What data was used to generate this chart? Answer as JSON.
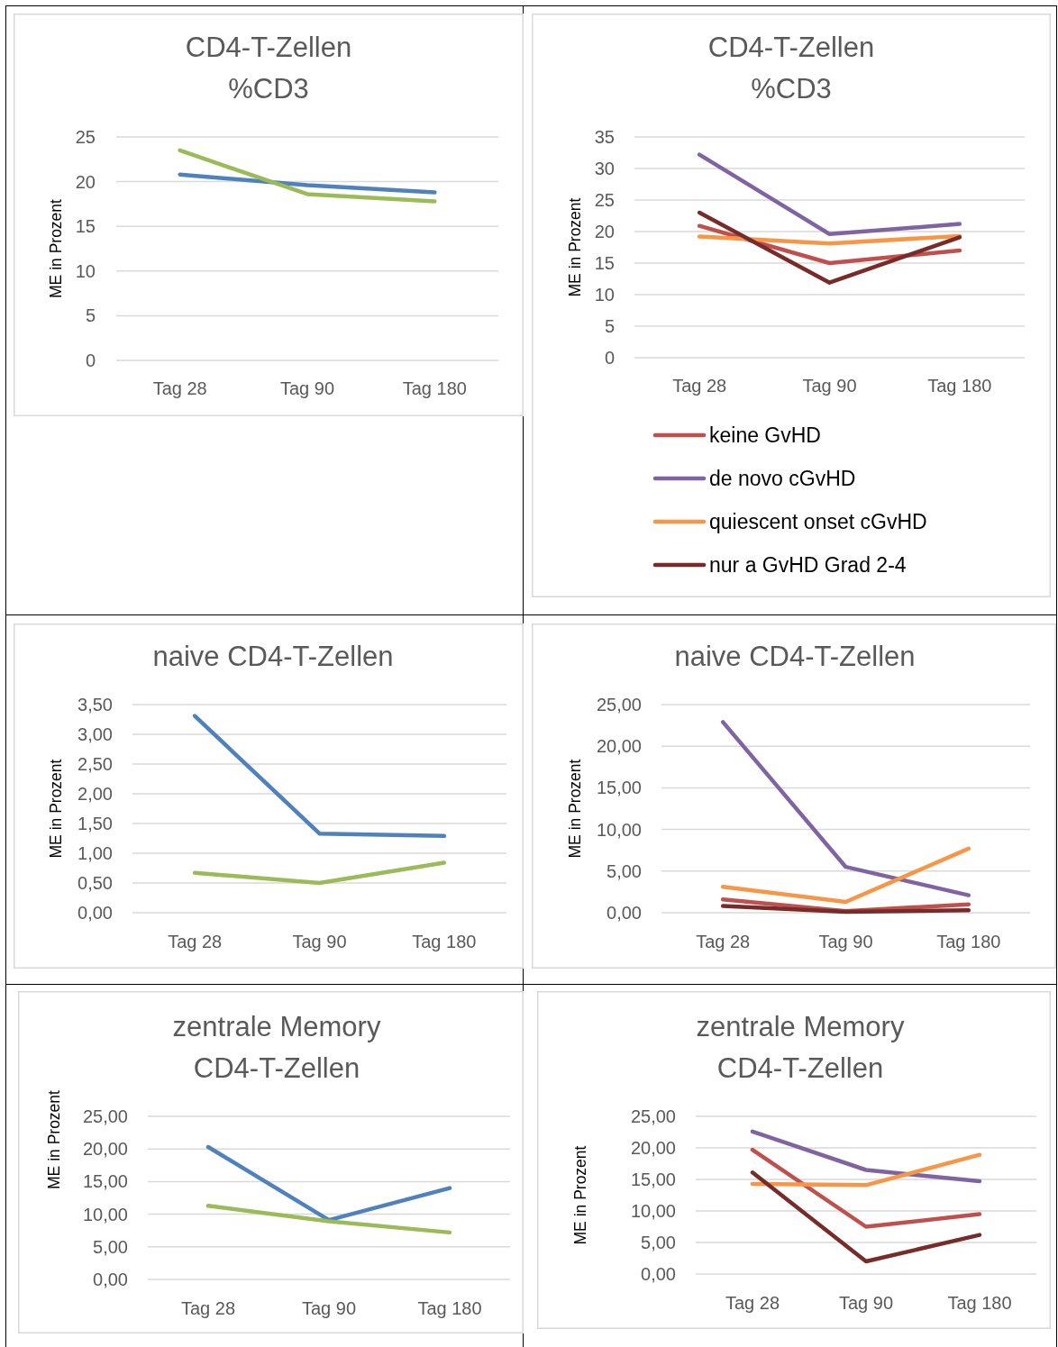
{
  "chart_data": [
    {
      "type": "line",
      "title": "CD4-T-Zellen %CD3",
      "ylabel": "ME in Prozent",
      "categories": [
        "Tag 28",
        "Tag 90",
        "Tag 180"
      ],
      "series": [
        {
          "color": "#4f81bd",
          "values": [
            20.8,
            19.6,
            18.8
          ]
        },
        {
          "color": "#9bbb59",
          "values": [
            23.5,
            18.6,
            17.8
          ]
        }
      ],
      "ylim": [
        0,
        25
      ],
      "yticks": [
        0,
        5,
        10,
        15,
        20,
        25
      ],
      "grid": "y"
    },
    {
      "type": "line",
      "title": "CD4-T-Zellen %CD3",
      "ylabel": "ME in Prozent",
      "categories": [
        "Tag 28",
        "Tag 90",
        "Tag 180"
      ],
      "series": [
        {
          "name": "keine GvHD",
          "color": "#c0504d",
          "values": [
            20.9,
            15.0,
            17.0
          ]
        },
        {
          "name": "de novo cGvHD",
          "color": "#8064a2",
          "values": [
            32.2,
            19.6,
            21.2
          ]
        },
        {
          "name": "quiescent onset cGvHD",
          "color": "#f79646",
          "values": [
            19.2,
            18.1,
            19.3
          ]
        },
        {
          "name": "nur a GvHD Grad 2-4",
          "color": "#772c2a",
          "values": [
            23.0,
            11.9,
            19.1
          ]
        }
      ],
      "ylim": [
        0,
        35
      ],
      "yticks": [
        0,
        5,
        10,
        15,
        20,
        25,
        30,
        35
      ],
      "grid": "y",
      "legend": "bottom"
    },
    {
      "type": "line",
      "title": "naive CD4-T-Zellen",
      "ylabel": "ME in Prozent",
      "categories": [
        "Tag 28",
        "Tag 90",
        "Tag 180"
      ],
      "series": [
        {
          "color": "#4f81bd",
          "values": [
            3.31,
            1.33,
            1.29
          ]
        },
        {
          "color": "#9bbb59",
          "values": [
            0.67,
            0.5,
            0.84
          ]
        }
      ],
      "ylim": [
        0,
        3.5
      ],
      "yticks": [
        {
          "value": 0,
          "label": "0,00"
        },
        {
          "value": 0.5,
          "label": "0,50"
        },
        {
          "value": 1,
          "label": "1,00"
        },
        {
          "value": 1.5,
          "label": "1,50"
        },
        {
          "value": 2,
          "label": "2,00"
        },
        {
          "value": 2.5,
          "label": "2,50"
        },
        {
          "value": 3,
          "label": "3,00"
        },
        {
          "value": 3.5,
          "label": "3,50"
        }
      ],
      "grid": "y"
    },
    {
      "type": "line",
      "title": "naive CD4-T-Zellen",
      "ylabel": "ME in Prozent",
      "categories": [
        "Tag 28",
        "Tag 90",
        "Tag 180"
      ],
      "series": [
        {
          "color": "#c0504d",
          "values": [
            1.6,
            0.2,
            1.0
          ]
        },
        {
          "color": "#8064a2",
          "values": [
            22.9,
            5.5,
            2.1
          ]
        },
        {
          "color": "#f79646",
          "values": [
            3.1,
            1.3,
            7.7
          ]
        },
        {
          "color": "#772c2a",
          "values": [
            0.8,
            0.1,
            0.3
          ]
        }
      ],
      "ylim": [
        0,
        25
      ],
      "yticks": [
        {
          "value": 0,
          "label": "0,00"
        },
        {
          "value": 5,
          "label": "5,00"
        },
        {
          "value": 10,
          "label": "10,00"
        },
        {
          "value": 15,
          "label": "15,00"
        },
        {
          "value": 20,
          "label": "20,00"
        },
        {
          "value": 25,
          "label": "25,00"
        }
      ],
      "grid": "y"
    },
    {
      "type": "line",
      "title": "zentrale Memory CD4-T-Zellen",
      "ylabel": "ME in Prozent",
      "categories": [
        "Tag 28",
        "Tag 90",
        "Tag 180"
      ],
      "series": [
        {
          "color": "#4f81bd",
          "values": [
            20.3,
            9.1,
            14.0
          ]
        },
        {
          "color": "#9bbb59",
          "values": [
            11.3,
            8.9,
            7.2
          ]
        }
      ],
      "ylim": [
        0,
        25
      ],
      "yticks": [
        {
          "value": 0,
          "label": "0,00"
        },
        {
          "value": 5,
          "label": "5,00"
        },
        {
          "value": 10,
          "label": "10,00"
        },
        {
          "value": 15,
          "label": "15,00"
        },
        {
          "value": 20,
          "label": "20,00"
        },
        {
          "value": 25,
          "label": "25,00"
        }
      ],
      "grid": "y"
    },
    {
      "type": "line",
      "title": "zentrale Memory CD4-T-Zellen",
      "ylabel": "ME in Prozent",
      "categories": [
        "Tag 28",
        "Tag 90",
        "Tag 180"
      ],
      "series": [
        {
          "color": "#c0504d",
          "values": [
            19.7,
            7.5,
            9.5
          ]
        },
        {
          "color": "#8064a2",
          "values": [
            22.6,
            16.5,
            14.7
          ]
        },
        {
          "color": "#f79646",
          "values": [
            14.3,
            14.1,
            18.9
          ]
        },
        {
          "color": "#772c2a",
          "values": [
            16.1,
            2.0,
            6.2
          ]
        }
      ],
      "ylim": [
        0,
        25
      ],
      "yticks": [
        {
          "value": 0,
          "label": "0,00"
        },
        {
          "value": 5,
          "label": "5,00"
        },
        {
          "value": 10,
          "label": "10,00"
        },
        {
          "value": 15,
          "label": "15,00"
        },
        {
          "value": 20,
          "label": "20,00"
        },
        {
          "value": 25,
          "label": "25,00"
        }
      ],
      "grid": "y"
    }
  ]
}
